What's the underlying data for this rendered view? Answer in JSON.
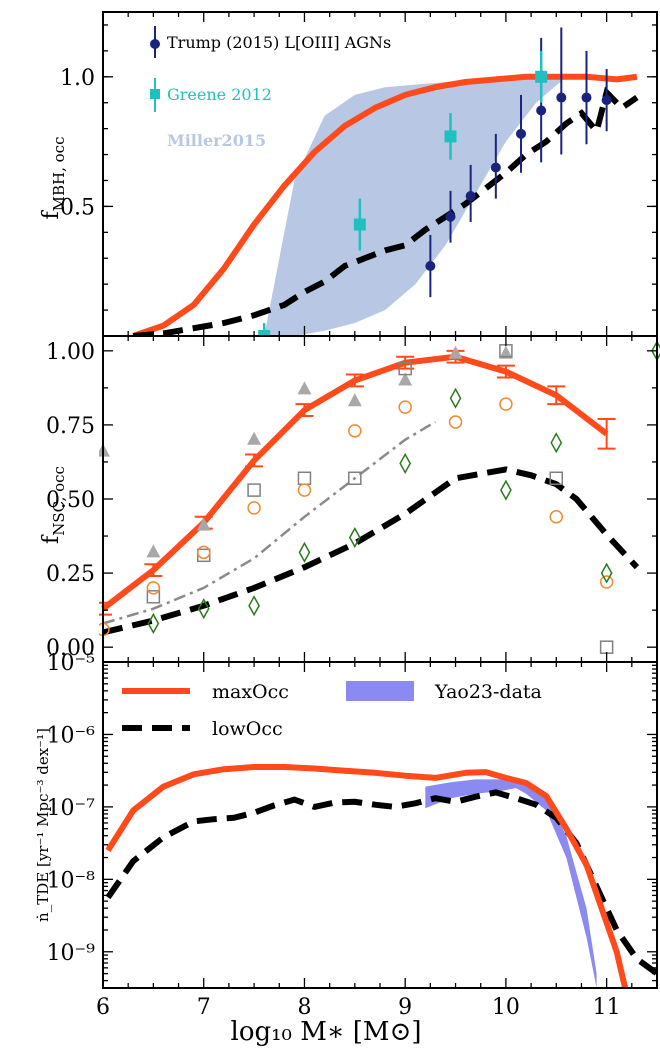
{
  "figure": {
    "x_axis_label": "log₁₀ M∗ [M⊙]",
    "x_ticks": [
      "6",
      "7",
      "8",
      "9",
      "10",
      "11"
    ],
    "xlim": [
      6,
      11.5
    ]
  },
  "chart_data": [
    {
      "type": "line",
      "ylabel": "f_MBH,occ",
      "ylim": [
        0,
        1.25
      ],
      "yticks": [
        "0.5",
        "1.0"
      ],
      "ytick_values": [
        0.5,
        1.0
      ],
      "legend": [
        "Trump (2015) L[OIII] AGNs",
        "Greene 2012",
        "Miller2015"
      ],
      "colors": {
        "maxOcc": "#ff4a1c",
        "lowOcc": "#000000",
        "trump": "#1a237e",
        "greene": "#20c0c0",
        "miller": "#b8c8e4"
      },
      "series": [
        {
          "key": "maxOcc",
          "x": [
            6.3,
            6.6,
            6.9,
            7.2,
            7.5,
            7.8,
            8.1,
            8.4,
            8.7,
            9.0,
            9.3,
            9.6,
            9.9,
            10.2,
            10.5,
            10.8,
            11.1,
            11.3
          ],
          "y": [
            0.0,
            0.04,
            0.12,
            0.26,
            0.43,
            0.58,
            0.71,
            0.81,
            0.88,
            0.93,
            0.96,
            0.98,
            0.99,
            1.0,
            1.0,
            1.0,
            0.99,
            1.0
          ]
        },
        {
          "key": "lowOcc",
          "x": [
            6.3,
            6.6,
            6.9,
            7.2,
            7.5,
            7.8,
            8.0,
            8.2,
            8.4,
            8.6,
            8.8,
            9.0,
            9.2,
            9.4,
            9.6,
            9.8,
            10.0,
            10.2,
            10.4,
            10.6,
            10.75,
            10.9,
            11.0,
            11.15,
            11.3
          ],
          "y": [
            0.0,
            0.01,
            0.03,
            0.05,
            0.08,
            0.12,
            0.17,
            0.21,
            0.27,
            0.3,
            0.33,
            0.35,
            0.41,
            0.46,
            0.51,
            0.57,
            0.63,
            0.7,
            0.75,
            0.82,
            0.86,
            0.79,
            0.94,
            0.88,
            0.92
          ]
        },
        {
          "key": "miller",
          "upper_x": [
            7.6,
            7.9,
            8.2,
            8.5,
            8.8,
            9.1,
            9.4,
            9.7,
            10.0,
            10.3,
            10.6
          ],
          "upper_y": [
            0.0,
            0.6,
            0.85,
            0.93,
            0.96,
            0.97,
            0.98,
            0.985,
            0.99,
            0.995,
            1.0
          ],
          "lower_x": [
            7.6,
            7.9,
            8.2,
            8.5,
            8.8,
            9.1,
            9.4,
            9.7,
            10.0,
            10.3,
            10.6
          ],
          "lower_y": [
            0.0,
            0.0,
            0.02,
            0.05,
            0.1,
            0.2,
            0.35,
            0.55,
            0.75,
            0.9,
            1.0
          ]
        },
        {
          "key": "trump",
          "x": [
            9.25,
            9.45,
            9.65,
            9.9,
            10.15,
            10.35,
            10.55,
            10.8,
            11.0
          ],
          "y": [
            0.27,
            0.46,
            0.54,
            0.65,
            0.78,
            0.87,
            0.92,
            0.92,
            0.91
          ],
          "err_lo": [
            0.12,
            0.1,
            0.1,
            0.12,
            0.15,
            0.2,
            0.22,
            0.18,
            0.12
          ],
          "err_hi": [
            0.12,
            0.1,
            0.12,
            0.13,
            0.15,
            0.28,
            0.27,
            0.18,
            0.12
          ]
        },
        {
          "key": "greene",
          "x": [
            7.6,
            8.55,
            9.45,
            10.35
          ],
          "y": [
            0.0,
            0.43,
            0.77,
            1.0
          ],
          "err_lo": [
            0.05,
            0.1,
            0.09,
            0.1
          ],
          "err_hi": [
            0.05,
            0.1,
            0.09,
            0.1
          ]
        }
      ]
    },
    {
      "type": "line",
      "ylabel": "f_NSC,occ",
      "ylim": [
        -0.05,
        1.05
      ],
      "yticks": [
        "0.00",
        "0.25",
        "0.50",
        "0.75",
        "1.00"
      ],
      "ytick_values": [
        0,
        0.25,
        0.5,
        0.75,
        1.0
      ],
      "series": [
        {
          "key": "maxOcc",
          "x": [
            6.0,
            6.5,
            7.0,
            7.5,
            8.0,
            8.5,
            9.0,
            9.5,
            10.0,
            10.5,
            11.0
          ],
          "y": [
            0.13,
            0.26,
            0.42,
            0.63,
            0.8,
            0.9,
            0.96,
            0.98,
            0.93,
            0.85,
            0.72
          ],
          "err": [
            0.02,
            0.02,
            0.02,
            0.02,
            0.02,
            0.02,
            0.02,
            0.02,
            0.02,
            0.03,
            0.05
          ]
        },
        {
          "key": "lowOcc",
          "x": [
            6.0,
            6.5,
            7.0,
            7.5,
            8.0,
            8.5,
            9.0,
            9.5,
            10.0,
            10.25,
            10.5,
            10.7,
            11.0,
            11.3
          ],
          "y": [
            0.05,
            0.09,
            0.14,
            0.2,
            0.27,
            0.35,
            0.45,
            0.57,
            0.6,
            0.58,
            0.55,
            0.5,
            0.38,
            0.27
          ]
        },
        {
          "key": "dashdot",
          "x": [
            6.0,
            6.5,
            7.0,
            7.5,
            8.0,
            8.5,
            9.0,
            9.3
          ],
          "y": [
            0.08,
            0.13,
            0.2,
            0.3,
            0.44,
            0.57,
            0.7,
            0.76
          ]
        },
        {
          "key": "triangles",
          "x": [
            6.0,
            6.5,
            7.0,
            7.5,
            8.0,
            8.5,
            9.0,
            9.5,
            10.0
          ],
          "y": [
            0.66,
            0.32,
            0.41,
            0.7,
            0.87,
            0.83,
            0.9,
            0.99,
            0.99
          ]
        },
        {
          "key": "squares",
          "x": [
            6.5,
            7.0,
            7.5,
            8.0,
            8.5,
            9.0,
            10.0,
            10.5,
            11.0
          ],
          "y": [
            0.17,
            0.31,
            0.53,
            0.57,
            0.57,
            0.94,
            1.0,
            0.57,
            0.0
          ]
        },
        {
          "key": "circles",
          "x": [
            6.0,
            6.5,
            7.0,
            7.5,
            8.0,
            8.5,
            9.0,
            9.5,
            10.0,
            10.5,
            11.0
          ],
          "y": [
            0.06,
            0.2,
            0.32,
            0.47,
            0.53,
            0.73,
            0.81,
            0.76,
            0.82,
            0.44,
            0.22
          ]
        },
        {
          "key": "diamonds",
          "x": [
            6.5,
            7.0,
            7.5,
            8.0,
            8.5,
            9.0,
            9.5,
            10.0,
            10.5,
            11.0,
            11.5
          ],
          "y": [
            0.08,
            0.13,
            0.14,
            0.32,
            0.37,
            0.62,
            0.84,
            0.53,
            0.69,
            0.25,
            1.0
          ]
        }
      ]
    },
    {
      "type": "line",
      "ylabel": "ṅ_TDE [yr⁻¹ Mpc⁻³ dex⁻¹]",
      "yscale": "log",
      "ylim_exp": [
        -9.5,
        -5
      ],
      "yticks": [
        "10⁻⁹",
        "10⁻⁸",
        "10⁻⁷",
        "10⁻⁶",
        "10⁻⁵"
      ],
      "ytick_exps": [
        -9,
        -8,
        -7,
        -6,
        -5
      ],
      "legend": [
        "maxOcc",
        "lowOcc",
        "Yao23-data"
      ],
      "series": [
        {
          "key": "maxOcc",
          "x": [
            6.05,
            6.3,
            6.6,
            6.9,
            7.2,
            7.5,
            7.8,
            8.1,
            8.4,
            8.7,
            9.0,
            9.3,
            9.6,
            9.8,
            10.0,
            10.2,
            10.4,
            10.6,
            10.8,
            10.95,
            11.1,
            11.2
          ],
          "log_y": [
            -7.6,
            -7.05,
            -6.72,
            -6.55,
            -6.48,
            -6.45,
            -6.45,
            -6.47,
            -6.5,
            -6.53,
            -6.57,
            -6.6,
            -6.53,
            -6.52,
            -6.6,
            -6.67,
            -6.85,
            -7.3,
            -7.8,
            -8.4,
            -9.0,
            -9.6
          ]
        },
        {
          "key": "lowOcc",
          "x": [
            6.05,
            6.3,
            6.6,
            6.9,
            7.1,
            7.3,
            7.5,
            7.7,
            7.9,
            8.1,
            8.3,
            8.5,
            8.7,
            8.9,
            9.1,
            9.3,
            9.5,
            9.7,
            9.9,
            10.1,
            10.3,
            10.5,
            10.7,
            10.9,
            11.1,
            11.3,
            11.5
          ],
          "log_y": [
            -8.25,
            -7.75,
            -7.42,
            -7.2,
            -7.17,
            -7.15,
            -7.08,
            -6.98,
            -6.9,
            -7.0,
            -6.94,
            -6.93,
            -6.97,
            -7.0,
            -6.95,
            -6.88,
            -6.93,
            -6.86,
            -6.8,
            -6.88,
            -6.97,
            -7.15,
            -7.5,
            -8.1,
            -8.7,
            -9.1,
            -9.3
          ]
        },
        {
          "key": "yao",
          "upper_x": [
            9.2,
            9.45,
            9.7,
            9.95,
            10.1,
            10.2,
            10.4,
            10.6,
            10.8,
            10.9
          ],
          "upper_log_y": [
            -6.72,
            -6.66,
            -6.62,
            -6.62,
            -6.63,
            -6.64,
            -6.85,
            -7.4,
            -8.4,
            -9.3
          ],
          "lower_x": [
            9.2,
            9.45,
            9.7,
            9.95,
            10.1,
            10.2,
            10.4,
            10.6,
            10.8,
            10.9
          ],
          "lower_log_y": [
            -7.02,
            -6.88,
            -6.82,
            -6.78,
            -6.74,
            -6.82,
            -7.05,
            -7.7,
            -8.8,
            -9.5
          ]
        }
      ]
    }
  ]
}
